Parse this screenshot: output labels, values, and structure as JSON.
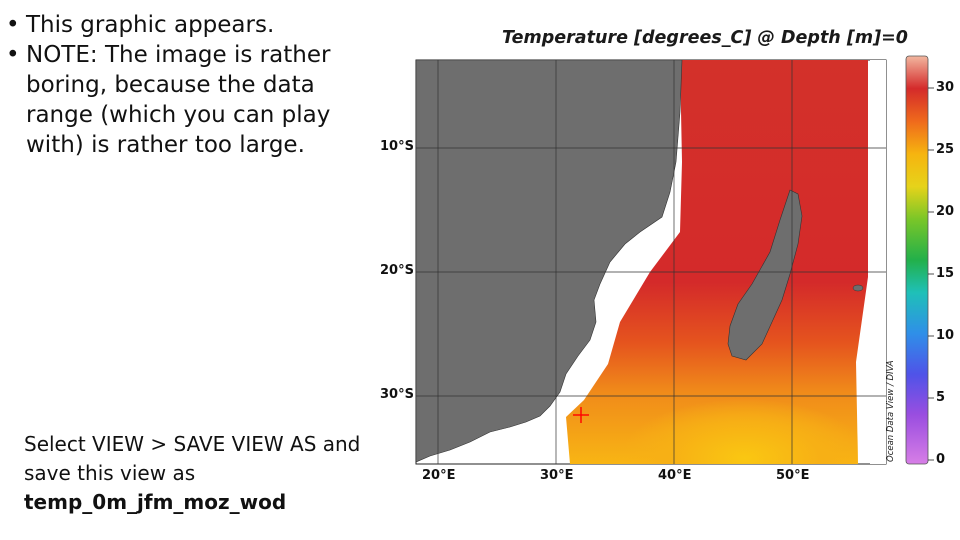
{
  "slide": {
    "bullets": [
      "This graphic appears.",
      "NOTE:  The image is rather boring, because the data range (which you can play with) is rather too large."
    ],
    "instruction_line1": "Select VIEW > SAVE VIEW AS and save this view as",
    "filename": "temp_0m_jfm_moz_wod"
  },
  "map": {
    "title": "Temperature [degrees_C] @ Depth [m]=0",
    "credit": "Ocean Data View / DIVA",
    "lat_labels": [
      "10°S",
      "20°S",
      "30°S"
    ],
    "lon_labels": [
      "20°E",
      "30°E",
      "40°E",
      "50°E"
    ],
    "colorbar_ticks": [
      "30",
      "25",
      "20",
      "15",
      "10",
      "5",
      "0"
    ],
    "colors": {
      "land": "#6e6e6e",
      "warm": "#d42a2a",
      "orange": "#ef7a1c",
      "yellow": "#f9bf12",
      "marker": "#ff0000"
    }
  }
}
